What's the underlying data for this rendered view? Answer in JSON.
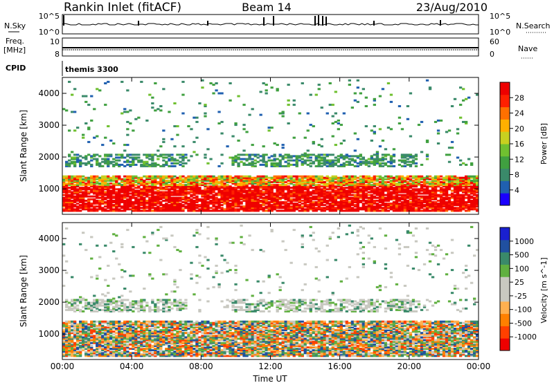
{
  "header": {
    "station": "Rankin Inlet (fitACF)",
    "beam": "Beam 14",
    "date": "23/Aug/2010"
  },
  "top_panels": {
    "nsky_label": "N.Sky",
    "nsky_ticks": [
      "10^5",
      "10^0"
    ],
    "nsearch_label": "N.Search",
    "nsearch_ticks": [
      "10^5",
      "10^0"
    ],
    "freq_label_line1": "Freq.",
    "freq_label_line2": "[MHz]",
    "freq_ticks": [
      "10",
      "8"
    ],
    "nave_label": "Nave",
    "nave_ticks": [
      "60",
      "0"
    ],
    "cpid_label": "CPID",
    "cpid_value": "themis 3300"
  },
  "colors": {
    "power": [
      "#1a00ff",
      "#2060b0",
      "#3a8a6a",
      "#40a040",
      "#70c030",
      "#c8d020",
      "#ffb000",
      "#ff7000",
      "#ff2000",
      "#ee0000"
    ],
    "velocity": [
      "#ee0000",
      "#ff4000",
      "#ff8000",
      "#ffb050",
      "#c8c8c0",
      "#c8c8c0",
      "#60b040",
      "#3a8a6a",
      "#2050a0",
      "#1a20d0"
    ]
  },
  "chart_data": [
    {
      "type": "heatmap",
      "title": "Power",
      "xlabel": "",
      "ylabel": "Slant Range [km]",
      "x_ticks": [
        "00:00",
        "04:00",
        "08:00",
        "12:00",
        "16:00",
        "20:00",
        "00:00"
      ],
      "y_ticks": [
        "1000",
        "2000",
        "3000",
        "4000"
      ],
      "ylim": [
        200,
        4500
      ],
      "colorbar_label": "Power [dB]",
      "colorbar_ticks": [
        "4",
        "8",
        "12",
        "16",
        "20",
        "24",
        "28"
      ],
      "colorbar_range": [
        0,
        30
      ]
    },
    {
      "type": "heatmap",
      "title": "Velocity",
      "xlabel": "Time UT",
      "ylabel": "Slant Range [km]",
      "x_ticks": [
        "00:00",
        "04:00",
        "08:00",
        "12:00",
        "16:00",
        "20:00",
        "00:00"
      ],
      "y_ticks": [
        "1000",
        "2000",
        "3000",
        "4000"
      ],
      "ylim": [
        200,
        4500
      ],
      "colorbar_label": "Velocity [m s^-1]",
      "colorbar_ticks": [
        "1000",
        "500",
        "100",
        "25",
        "-25",
        "-100",
        "-500",
        "-1000"
      ]
    }
  ]
}
